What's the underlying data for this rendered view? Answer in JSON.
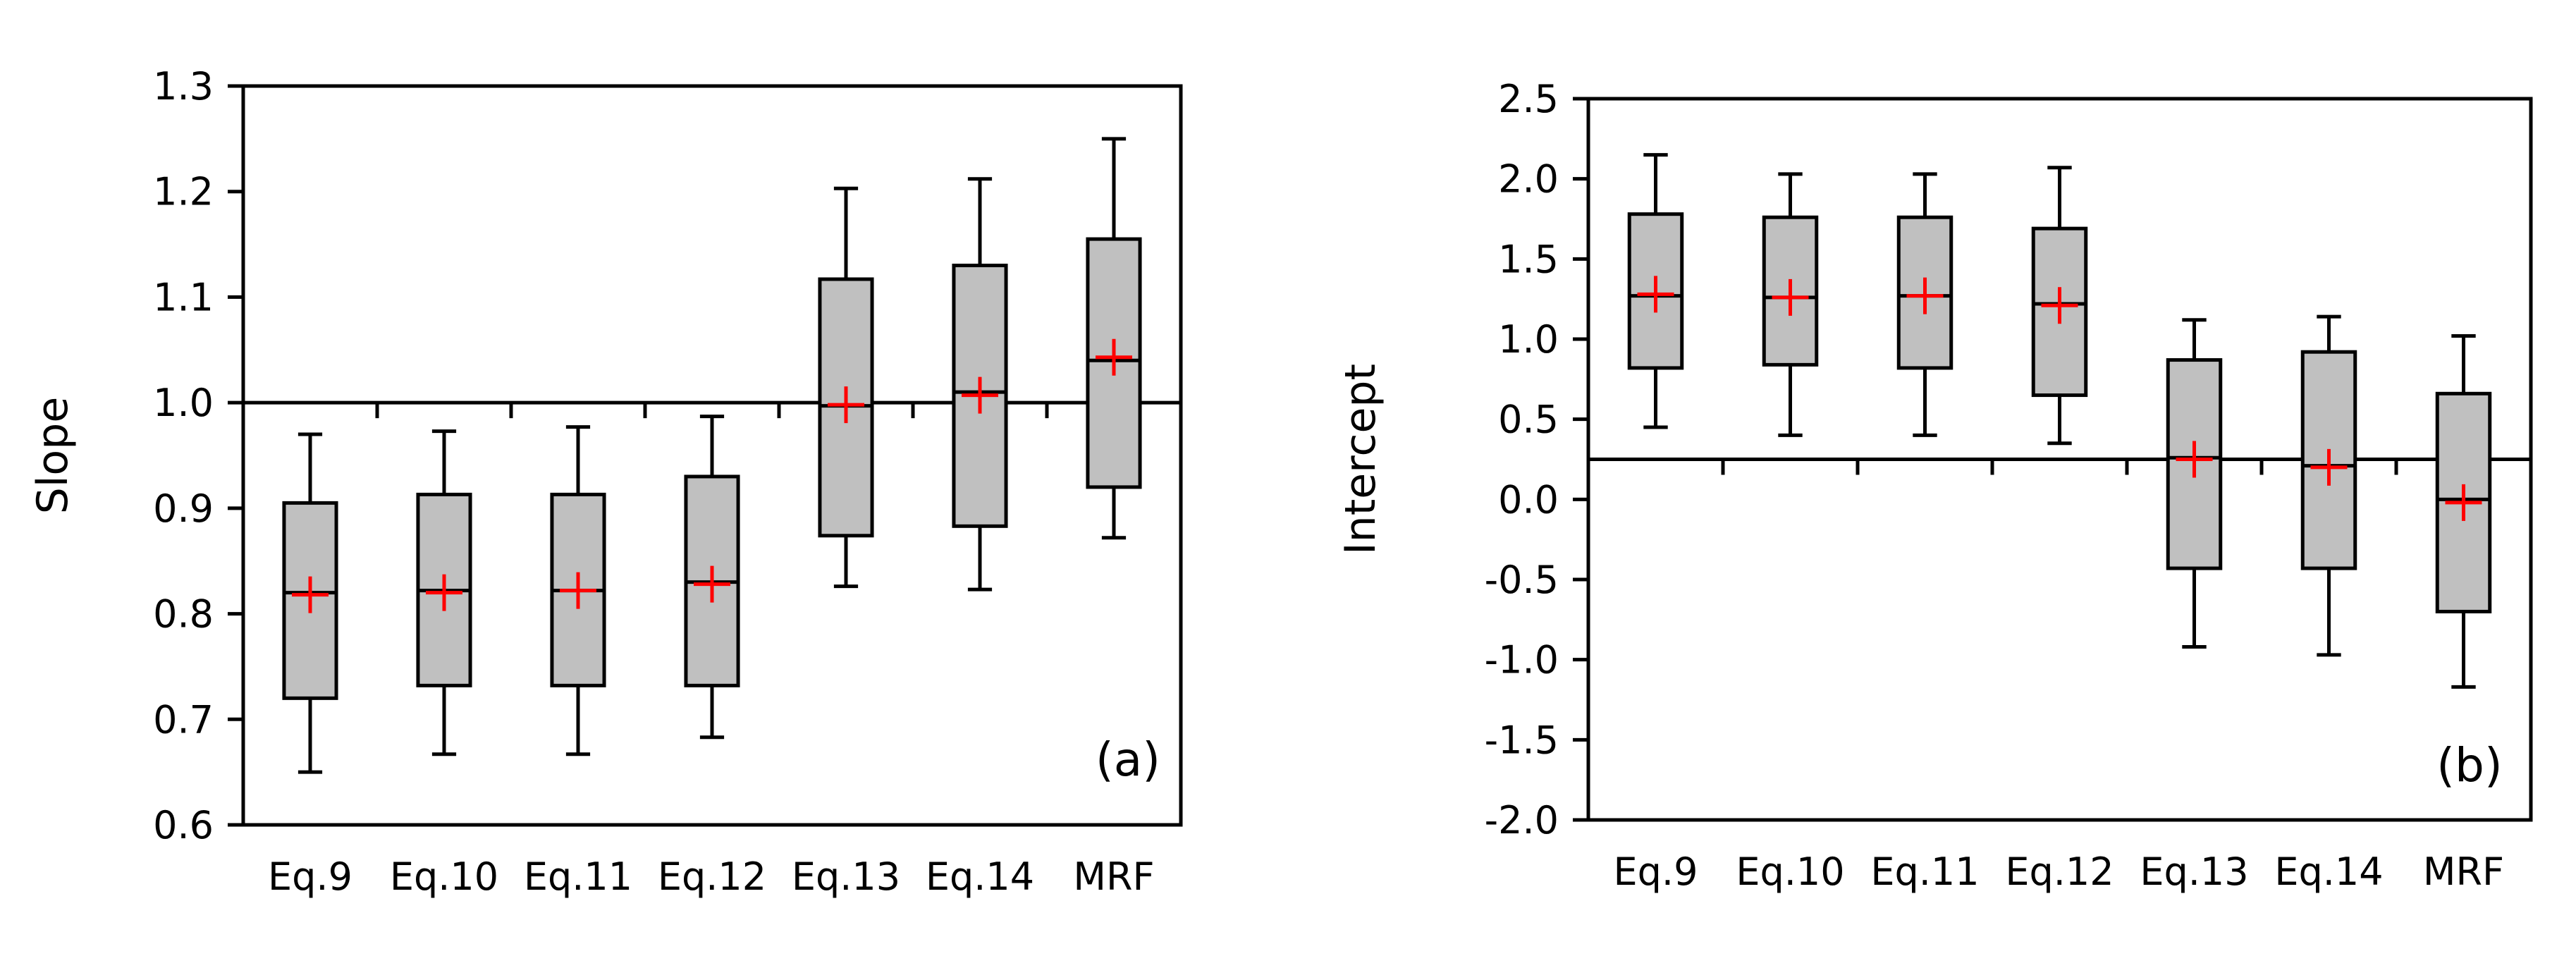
{
  "colors": {
    "box_fill": "#c0c0c0",
    "box_stroke": "#000000",
    "mean_marker": "#ff0000",
    "axis": "#000000"
  },
  "chart_data": [
    {
      "type": "boxplot",
      "panel_label": "(a)",
      "ylabel": "Slope",
      "xlabel": "",
      "ylim": [
        0.6,
        1.3
      ],
      "yticks": [
        0.6,
        0.7,
        0.8,
        0.9,
        1.0,
        1.1,
        1.2,
        1.3
      ],
      "ytick_labels": [
        "0.6",
        "0.7",
        "0.8",
        "0.9",
        "1.0",
        "1.1",
        "1.2",
        "1.3"
      ],
      "reference_line": 1.0,
      "categories": [
        "Eq.9",
        "Eq.10",
        "Eq.11",
        "Eq.12",
        "Eq.13",
        "Eq.14",
        "MRF"
      ],
      "boxes": [
        {
          "min": 0.65,
          "q1": 0.72,
          "median": 0.82,
          "q3": 0.905,
          "max": 0.97,
          "mean": 0.818
        },
        {
          "min": 0.667,
          "q1": 0.732,
          "median": 0.822,
          "q3": 0.913,
          "max": 0.973,
          "mean": 0.82
        },
        {
          "min": 0.667,
          "q1": 0.732,
          "median": 0.822,
          "q3": 0.913,
          "max": 0.977,
          "mean": 0.822
        },
        {
          "min": 0.683,
          "q1": 0.732,
          "median": 0.83,
          "q3": 0.93,
          "max": 0.987,
          "mean": 0.828
        },
        {
          "min": 0.826,
          "q1": 0.874,
          "median": 0.997,
          "q3": 1.117,
          "max": 1.203,
          "mean": 0.998
        },
        {
          "min": 0.823,
          "q1": 0.883,
          "median": 1.01,
          "q3": 1.13,
          "max": 1.212,
          "mean": 1.007
        },
        {
          "min": 0.872,
          "q1": 0.92,
          "median": 1.04,
          "q3": 1.155,
          "max": 1.25,
          "mean": 1.043
        }
      ]
    },
    {
      "type": "boxplot",
      "panel_label": "(b)",
      "ylabel": "Intercept",
      "xlabel": "",
      "ylim": [
        -2.0,
        2.5
      ],
      "yticks": [
        -2.0,
        -1.5,
        -1.0,
        -0.5,
        0.0,
        0.5,
        1.0,
        1.5,
        2.0,
        2.5
      ],
      "ytick_labels": [
        "-2.0",
        "-1.5",
        "-1.0",
        "-0.5",
        "0.0",
        "0.5",
        "1.0",
        "1.5",
        "2.0",
        "2.5"
      ],
      "reference_line": 0.25,
      "categories": [
        "Eq.9",
        "Eq.10",
        "Eq.11",
        "Eq.12",
        "Eq.13",
        "Eq.14",
        "MRF"
      ],
      "boxes": [
        {
          "min": 0.45,
          "q1": 0.82,
          "median": 1.27,
          "q3": 1.78,
          "max": 2.15,
          "mean": 1.28
        },
        {
          "min": 0.4,
          "q1": 0.84,
          "median": 1.26,
          "q3": 1.76,
          "max": 2.03,
          "mean": 1.26
        },
        {
          "min": 0.4,
          "q1": 0.82,
          "median": 1.27,
          "q3": 1.76,
          "max": 2.03,
          "mean": 1.27
        },
        {
          "min": 0.35,
          "q1": 0.65,
          "median": 1.22,
          "q3": 1.69,
          "max": 2.07,
          "mean": 1.21
        },
        {
          "min": -0.92,
          "q1": -0.43,
          "median": 0.26,
          "q3": 0.87,
          "max": 1.12,
          "mean": 0.25
        },
        {
          "min": -0.97,
          "q1": -0.43,
          "median": 0.21,
          "q3": 0.92,
          "max": 1.14,
          "mean": 0.2
        },
        {
          "min": -1.17,
          "q1": -0.7,
          "median": 0.0,
          "q3": 0.66,
          "max": 1.02,
          "mean": -0.02
        }
      ]
    }
  ]
}
